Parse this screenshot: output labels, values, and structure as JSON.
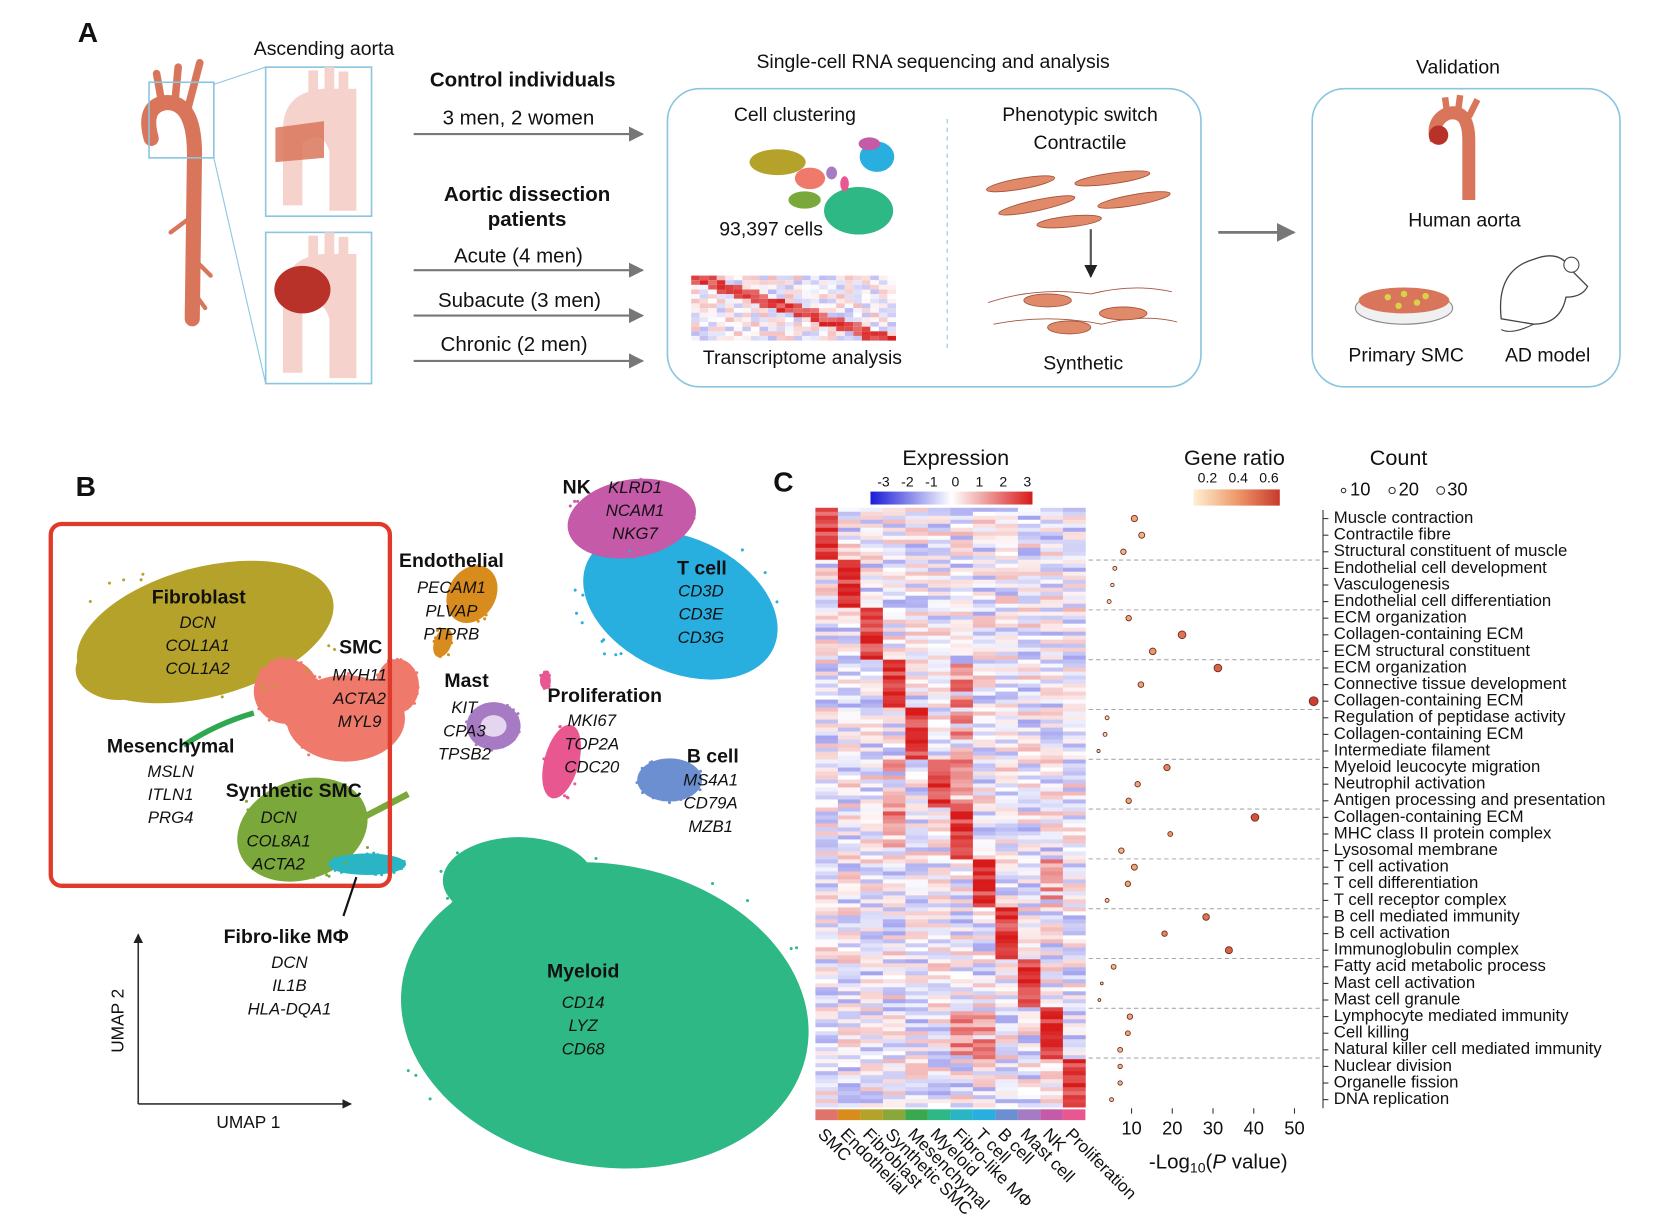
{
  "panel_a": {
    "label": "A",
    "aorta_title": "Ascending aorta",
    "control_title": "Control individuals",
    "control_detail": "3 men, 2 women",
    "ad_title": [
      "Aortic dissection",
      "patients"
    ],
    "ad_groups": [
      "Acute (4 men)",
      "Subacute (3 men)",
      "Chronic (2 men)"
    ],
    "scrna_title": "Single-cell RNA sequencing and analysis",
    "clustering": "Cell clustering",
    "cells": "93,397 cells",
    "transcriptome": "Transcriptome analysis",
    "switch_title": "Phenotypic switch",
    "contractile": "Contractile",
    "synthetic": "Synthetic",
    "validation_title": "Validation",
    "human_aorta": "Human aorta",
    "primary_smc": "Primary SMC",
    "ad_model": "AD model"
  },
  "panel_b": {
    "label": "B",
    "umap1": "UMAP 1",
    "umap2": "UMAP 2",
    "clusters": [
      {
        "name": "Fibroblast",
        "genes": [
          "DCN",
          "COL1A1",
          "COL1A2"
        ]
      },
      {
        "name": "SMC",
        "genes": [
          "MYH11",
          "ACTA2",
          "MYL9"
        ]
      },
      {
        "name": "Mesenchymal",
        "genes": [
          "MSLN",
          "ITLN1",
          "PRG4"
        ]
      },
      {
        "name": "Synthetic SMC",
        "genes": [
          "DCN",
          "COL8A1",
          "ACTA2"
        ]
      },
      {
        "name": "Fibro-like MΦ",
        "genes": [
          "DCN",
          "IL1B",
          "HLA-DQA1"
        ]
      },
      {
        "name": "Endothelial",
        "genes": [
          "PECAM1",
          "PLVAP",
          "PTPRB"
        ]
      },
      {
        "name": "Mast",
        "genes": [
          "KIT",
          "CPA3",
          "TPSB2"
        ]
      },
      {
        "name": "NK",
        "genes": [
          "KLRD1",
          "NCAM1",
          "NKG7"
        ]
      },
      {
        "name": "T cell",
        "genes": [
          "CD3D",
          "CD3E",
          "CD3G"
        ]
      },
      {
        "name": "Proliferation",
        "genes": [
          "MKI67",
          "TOP2A",
          "CDC20"
        ]
      },
      {
        "name": "B cell",
        "genes": [
          "MS4A1",
          "CD79A",
          "MZB1"
        ]
      },
      {
        "name": "Myeloid",
        "genes": [
          "CD14",
          "LYZ",
          "CD68"
        ]
      }
    ]
  },
  "panel_c": {
    "label": "C",
    "expression_title": "Expression",
    "expression_ticks": [
      -3,
      -2,
      -1,
      0,
      1,
      2,
      3
    ],
    "gene_ratio_title": "Gene ratio",
    "gene_ratio_ticks": [
      0.2,
      0.4,
      0.6
    ],
    "count_title": "Count",
    "count_legend": [
      10,
      20,
      30
    ],
    "heatmap_columns": [
      "SMC",
      "Endothelial",
      "Fibroblast",
      "Synthetic SMC",
      "Mesenchymal",
      "Myeloid",
      "Fibro-like MΦ",
      "T cell",
      "B cell",
      "Mast cell",
      "NK",
      "Proliferation"
    ],
    "dotplot": {
      "type": "scatter",
      "terms": [
        "Muscle contraction",
        "Contractile fibre",
        "Structural constituent of muscle",
        "Endothelial cell development",
        "Vasculogenesis",
        "Endothelial cell differentiation",
        "ECM organization",
        "Collagen-containing ECM",
        "ECM structural constituent",
        "ECM organization",
        "Connective tissue development",
        "Collagen-containing ECM",
        "Regulation of peptidase activity",
        "Collagen-containing ECM",
        "Intermediate filament",
        "Myeloid leucocyte migration",
        "Neutrophil activation",
        "Antigen processing and presentation",
        "Collagen-containing ECM",
        "MHC class II protein complex",
        "Lysosomal membrane",
        "T cell activation",
        "T cell differentiation",
        "T cell receptor complex",
        "B cell mediated immunity",
        "B cell activation",
        "Immunoglobulin complex",
        "Fatty acid metabolic process",
        "Mast cell activation",
        "Mast cell granule",
        "Lymphocyte mediated immunity",
        "Cell killing",
        "Natural killer cell mediated immunity",
        "Nuclear division",
        "Organelle fission",
        "DNA replication"
      ],
      "values": [
        10.7,
        12.5,
        8,
        5.9,
        5.3,
        4.5,
        9.3,
        22.4,
        15.2,
        31.2,
        12.3,
        54.7,
        4,
        3.5,
        1.9,
        18.7,
        11.5,
        9.3,
        40.3,
        19.5,
        7.5,
        10.7,
        9.1,
        4,
        28.3,
        18.1,
        33.9,
        5.6,
        2.7,
        2.1,
        9.6,
        9.1,
        7.2,
        7.2,
        7.2,
        5.1
      ],
      "gene_ratio": [
        0.35,
        0.3,
        0.3,
        0.2,
        0.15,
        0.2,
        0.35,
        0.5,
        0.4,
        0.55,
        0.35,
        0.65,
        0.2,
        0.2,
        0.15,
        0.45,
        0.35,
        0.35,
        0.6,
        0.4,
        0.3,
        0.35,
        0.35,
        0.25,
        0.5,
        0.45,
        0.55,
        0.3,
        0.15,
        0.15,
        0.35,
        0.35,
        0.3,
        0.3,
        0.3,
        0.25
      ],
      "count": [
        20,
        18,
        15,
        8,
        6,
        8,
        15,
        30,
        22,
        30,
        16,
        40,
        8,
        8,
        5,
        20,
        15,
        15,
        30,
        12,
        15,
        18,
        15,
        8,
        22,
        15,
        25,
        12,
        4,
        4,
        15,
        12,
        12,
        10,
        10,
        8
      ],
      "xlim": [
        0,
        57
      ],
      "xticks": [
        10,
        20,
        30,
        40,
        50
      ],
      "xlabel": [
        "-Log",
        "10",
        "(",
        "P",
        " value)"
      ]
    }
  }
}
